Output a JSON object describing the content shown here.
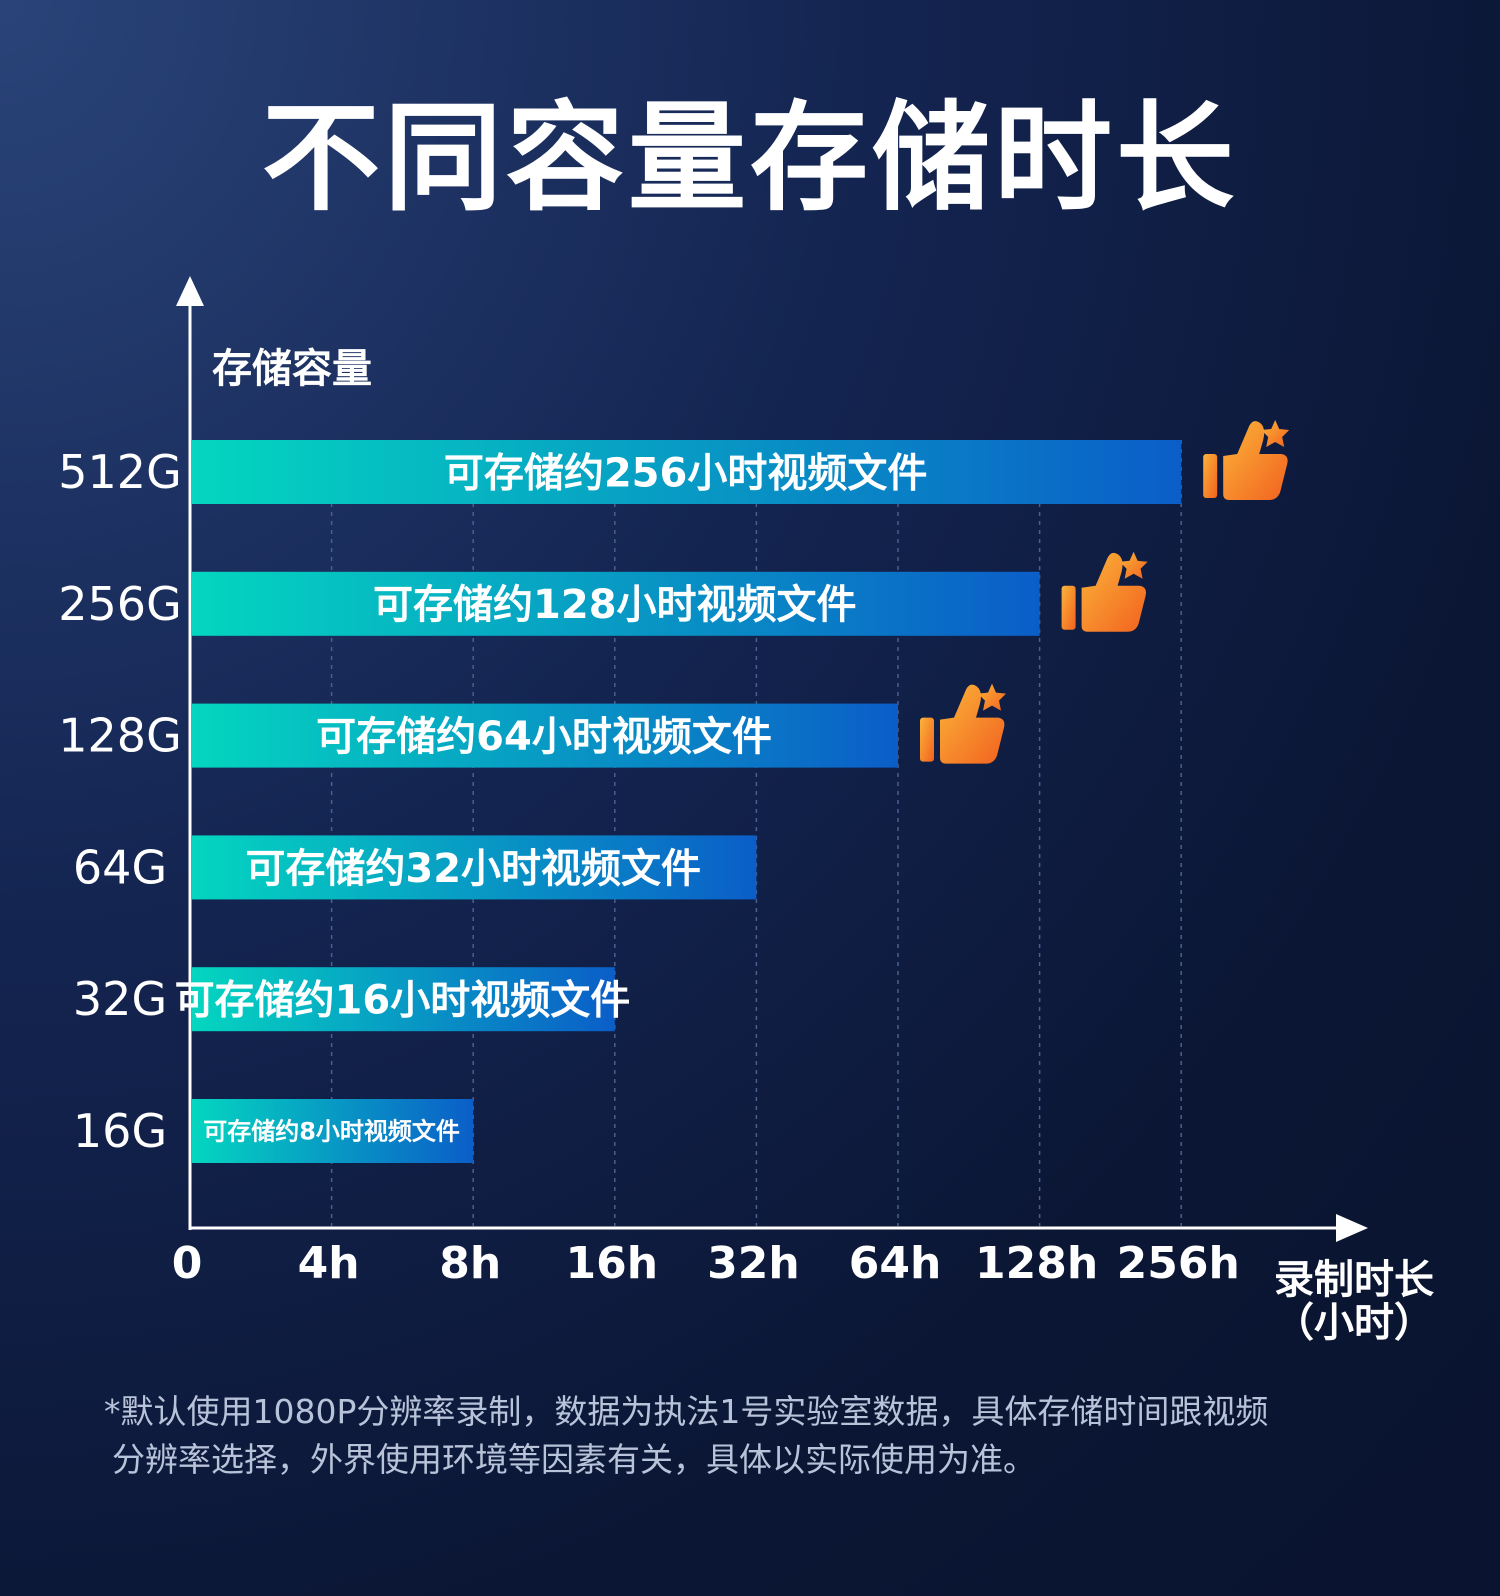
{
  "title": "不同容量存储时长",
  "chart_data": {
    "type": "bar",
    "orientation": "horizontal",
    "ylabel": "存储容量",
    "xlabel": "录制时长",
    "xlabel_unit": "（小时）",
    "x_scale": "log2",
    "grid": "vertical-dashed",
    "x_ticks": [
      {
        "label": "0",
        "value": 0
      },
      {
        "label": "4h",
        "value": 4
      },
      {
        "label": "8h",
        "value": 8
      },
      {
        "label": "16h",
        "value": 16
      },
      {
        "label": "32h",
        "value": 32
      },
      {
        "label": "64h",
        "value": 64
      },
      {
        "label": "128h",
        "value": 128
      },
      {
        "label": "256h",
        "value": 256
      }
    ],
    "categories": [
      "512G",
      "256G",
      "128G",
      "64G",
      "32G",
      "16G"
    ],
    "values": [
      256,
      128,
      64,
      32,
      16,
      8
    ],
    "bar_labels": [
      "可存储约256小时视频文件",
      "可存储约128小时视频文件",
      "可存储约64小时视频文件",
      "可存储约32小时视频文件",
      "可存储约16小时视频文件",
      "可存储约8小时视频文件"
    ],
    "highlighted": [
      "512G",
      "256G",
      "128G"
    ],
    "highlight_icon": "thumbs-up-star-icon",
    "colors": {
      "bar_start": "#04d6c0",
      "bar_end": "#0b5ec8",
      "icon_start": "#fbb43a",
      "icon_end": "#f2621f",
      "axis": "#ffffff",
      "grid": "#4a5f8c"
    }
  },
  "footnote": {
    "line1": "*默认使用1080P分辨率录制，数据为执法1号实验室数据，具体存储时间跟视频",
    "line2": "分辨率选择，外界使用环境等因素有关，具体以实际使用为准。"
  }
}
